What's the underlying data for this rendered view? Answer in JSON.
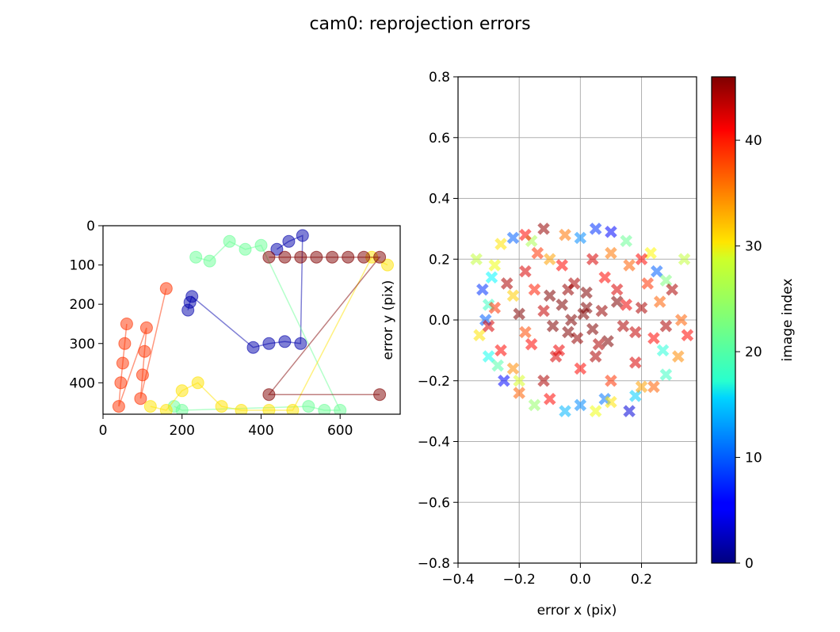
{
  "figure": {
    "title": "cam0: reprojection errors"
  },
  "chart_data": [
    {
      "type": "scatter",
      "title": "",
      "xlabel": "",
      "ylabel": "",
      "xlim": [
        0,
        752
      ],
      "ylim": [
        480,
        0
      ],
      "y_inverted": true,
      "grid": false,
      "xticks": [
        0,
        200,
        400,
        600
      ],
      "yticks": [
        0,
        100,
        200,
        300,
        400
      ],
      "marker": "circle",
      "connected_by_lines": true,
      "colormap": "jet",
      "color_by": "image index",
      "groups": [
        {
          "image_index": 2,
          "points": [
            [
              215,
              215
            ],
            [
              220,
              195
            ],
            [
              225,
              180
            ],
            [
              380,
              310
            ],
            [
              420,
              300
            ],
            [
              460,
              295
            ],
            [
              500,
              300
            ],
            [
              505,
              25
            ],
            [
              470,
              40
            ],
            [
              440,
              60
            ]
          ]
        },
        {
          "image_index": 22,
          "points": [
            [
              235,
              80
            ],
            [
              270,
              90
            ],
            [
              320,
              40
            ],
            [
              360,
              60
            ],
            [
              400,
              50
            ],
            [
              600,
              470
            ],
            [
              560,
              470
            ],
            [
              520,
              460
            ],
            [
              200,
              470
            ],
            [
              180,
              460
            ]
          ]
        },
        {
          "image_index": 30,
          "points": [
            [
              120,
              460
            ],
            [
              160,
              470
            ],
            [
              200,
              420
            ],
            [
              240,
              400
            ],
            [
              300,
              460
            ],
            [
              350,
              470
            ],
            [
              420,
              470
            ],
            [
              480,
              470
            ],
            [
              680,
              80
            ],
            [
              720,
              100
            ]
          ]
        },
        {
          "image_index": 38,
          "points": [
            [
              60,
              250
            ],
            [
              55,
              300
            ],
            [
              50,
              350
            ],
            [
              45,
              400
            ],
            [
              40,
              460
            ],
            [
              110,
              260
            ],
            [
              105,
              320
            ],
            [
              100,
              380
            ],
            [
              95,
              440
            ],
            [
              160,
              160
            ]
          ]
        },
        {
          "image_index": 46,
          "points": [
            [
              420,
              80
            ],
            [
              460,
              80
            ],
            [
              500,
              80
            ],
            [
              540,
              80
            ],
            [
              580,
              80
            ],
            [
              620,
              80
            ],
            [
              660,
              80
            ],
            [
              700,
              80
            ],
            [
              420,
              430
            ],
            [
              700,
              430
            ]
          ]
        }
      ]
    },
    {
      "type": "scatter",
      "title": "",
      "xlabel": "error x (pix)",
      "ylabel": "error y (pix)",
      "xlim": [
        -0.4,
        0.4
      ],
      "ylim": [
        -0.8,
        0.8
      ],
      "grid": true,
      "xticks": [
        -0.4,
        -0.2,
        0.0,
        0.2
      ],
      "xtick_labels": [
        "−0.4",
        "−0.2",
        "0.0",
        "0.2"
      ],
      "yticks": [
        -0.8,
        -0.6,
        -0.4,
        -0.2,
        0.0,
        0.2,
        0.4,
        0.6,
        0.8
      ],
      "ytick_labels": [
        "−0.8",
        "−0.6",
        "−0.4",
        "−0.2",
        "0.0",
        "0.2",
        "0.4",
        "0.6",
        "0.8"
      ],
      "marker": "x",
      "colormap": "jet",
      "color_by": "image index",
      "points": [
        [
          -0.32,
          0.1,
          8
        ],
        [
          -0.3,
          0.05,
          20
        ],
        [
          -0.28,
          0.18,
          28
        ],
        [
          -0.26,
          0.25,
          30
        ],
        [
          -0.22,
          0.27,
          10
        ],
        [
          -0.18,
          0.28,
          40
        ],
        [
          -0.12,
          0.3,
          45
        ],
        [
          -0.05,
          0.28,
          35
        ],
        [
          0.0,
          0.27,
          12
        ],
        [
          0.05,
          0.3,
          8
        ],
        [
          0.1,
          0.29,
          6
        ],
        [
          0.15,
          0.26,
          22
        ],
        [
          0.2,
          0.2,
          40
        ],
        [
          0.25,
          0.16,
          10
        ],
        [
          0.3,
          0.1,
          44
        ],
        [
          0.33,
          0.0,
          36
        ],
        [
          0.35,
          -0.05,
          40
        ],
        [
          0.34,
          0.2,
          26
        ],
        [
          0.32,
          -0.12,
          34
        ],
        [
          0.28,
          -0.18,
          20
        ],
        [
          0.24,
          -0.22,
          36
        ],
        [
          0.18,
          -0.25,
          15
        ],
        [
          0.16,
          -0.3,
          4
        ],
        [
          0.1,
          -0.27,
          30
        ],
        [
          0.05,
          -0.3,
          28
        ],
        [
          0.0,
          -0.28,
          12
        ],
        [
          -0.05,
          -0.3,
          14
        ],
        [
          -0.1,
          -0.26,
          40
        ],
        [
          -0.15,
          -0.28,
          24
        ],
        [
          -0.2,
          -0.24,
          36
        ],
        [
          -0.25,
          -0.2,
          6
        ],
        [
          -0.3,
          -0.12,
          18
        ],
        [
          -0.33,
          -0.05,
          30
        ],
        [
          -0.31,
          0.0,
          10
        ],
        [
          -0.34,
          0.2,
          26
        ],
        [
          -0.3,
          -0.02,
          42
        ],
        [
          -0.28,
          0.04,
          38
        ],
        [
          -0.26,
          -0.1,
          40
        ],
        [
          -0.24,
          0.12,
          44
        ],
        [
          -0.22,
          -0.16,
          34
        ],
        [
          -0.2,
          0.02,
          46
        ],
        [
          -0.18,
          0.16,
          42
        ],
        [
          -0.16,
          -0.08,
          40
        ],
        [
          -0.14,
          0.22,
          38
        ],
        [
          -0.12,
          -0.2,
          44
        ],
        [
          -0.1,
          0.08,
          46
        ],
        [
          -0.08,
          -0.12,
          42
        ],
        [
          -0.06,
          0.18,
          40
        ],
        [
          -0.04,
          -0.04,
          46
        ],
        [
          -0.02,
          0.12,
          44
        ],
        [
          0.0,
          -0.16,
          40
        ],
        [
          0.02,
          0.04,
          46
        ],
        [
          0.04,
          0.2,
          42
        ],
        [
          0.06,
          -0.08,
          44
        ],
        [
          0.08,
          0.14,
          40
        ],
        [
          0.1,
          -0.2,
          38
        ],
        [
          0.12,
          0.06,
          46
        ],
        [
          0.14,
          -0.02,
          44
        ],
        [
          0.16,
          0.18,
          36
        ],
        [
          0.18,
          -0.14,
          42
        ],
        [
          0.2,
          0.04,
          44
        ],
        [
          0.22,
          0.12,
          38
        ],
        [
          0.24,
          -0.06,
          40
        ],
        [
          0.26,
          0.06,
          36
        ],
        [
          0.28,
          -0.02,
          44
        ],
        [
          -0.03,
          0.0,
          46
        ],
        [
          0.01,
          0.02,
          46
        ],
        [
          -0.06,
          0.05,
          46
        ],
        [
          0.04,
          -0.03,
          46
        ],
        [
          -0.01,
          -0.06,
          45
        ],
        [
          0.07,
          0.03,
          45
        ],
        [
          -0.09,
          -0.02,
          46
        ],
        [
          0.02,
          0.09,
          46
        ],
        [
          -0.04,
          0.1,
          45
        ],
        [
          0.09,
          -0.07,
          46
        ],
        [
          -0.12,
          0.03,
          43
        ],
        [
          0.12,
          0.1,
          42
        ],
        [
          -0.07,
          -0.1,
          41
        ],
        [
          0.05,
          -0.12,
          44
        ],
        [
          -0.15,
          0.1,
          39
        ],
        [
          0.15,
          0.05,
          41
        ],
        [
          -0.18,
          -0.04,
          37
        ],
        [
          0.18,
          -0.04,
          43
        ],
        [
          -0.1,
          0.2,
          33
        ],
        [
          0.1,
          0.22,
          35
        ],
        [
          -0.22,
          0.08,
          31
        ],
        [
          0.23,
          0.22,
          29
        ],
        [
          -0.2,
          -0.2,
          27
        ],
        [
          0.2,
          -0.22,
          33
        ],
        [
          -0.27,
          -0.15,
          21
        ],
        [
          0.28,
          0.13,
          23
        ],
        [
          -0.29,
          0.14,
          17
        ],
        [
          0.27,
          -0.1,
          19
        ],
        [
          -0.16,
          0.26,
          25
        ],
        [
          0.08,
          -0.26,
          11
        ]
      ]
    }
  ],
  "colorbar": {
    "label": "image index",
    "min": 0,
    "max": 46,
    "ticks": [
      0,
      10,
      20,
      30,
      40
    ],
    "colormap": "jet"
  }
}
